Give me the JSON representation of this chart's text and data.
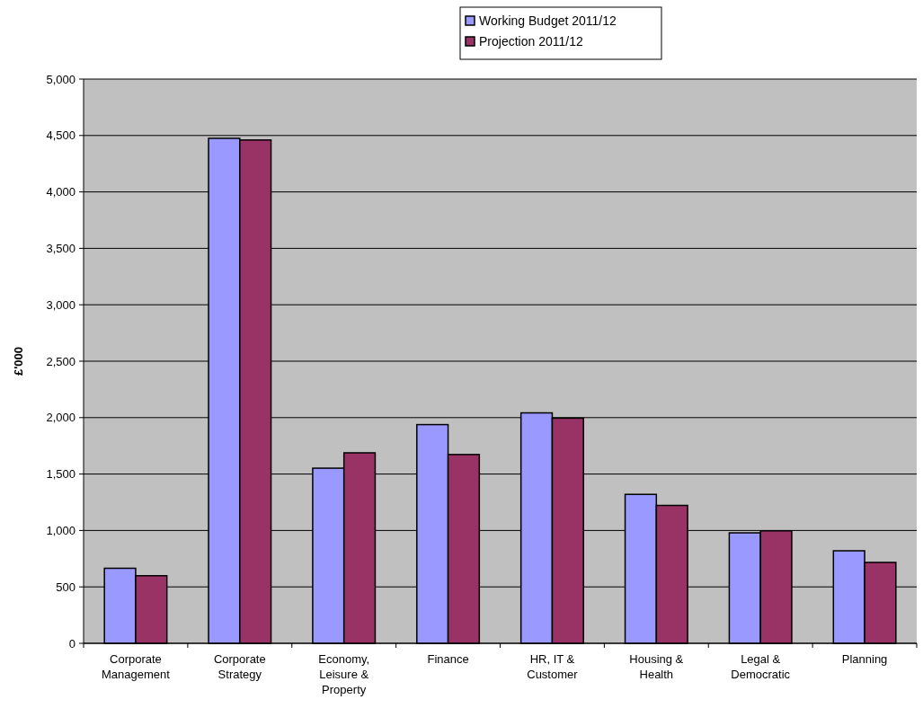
{
  "chart_data": {
    "type": "bar",
    "ylabel": "£'000",
    "categories": [
      "Corporate Management",
      "Corporate Strategy",
      "Economy, Leisure & Property",
      "Finance",
      "HR, IT & Customer",
      "Housing & Health",
      "Legal & Democratic",
      "Planning"
    ],
    "series": [
      {
        "name": "Working Budget 2011/12",
        "color": "#9999ff",
        "values": [
          665,
          4475,
          1552,
          1938,
          2042,
          1320,
          979,
          820
        ]
      },
      {
        "name": "Projection 2011/12",
        "color": "#993366",
        "values": [
          599,
          4460,
          1688,
          1673,
          1995,
          1222,
          997,
          717
        ]
      }
    ],
    "ylim": [
      0,
      5000
    ],
    "yticks": [
      {
        "value": 0,
        "label": "0"
      },
      {
        "value": 500,
        "label": "500"
      },
      {
        "value": 1000,
        "label": "1,000"
      },
      {
        "value": 1500,
        "label": "1,500"
      },
      {
        "value": 2000,
        "label": "2,000"
      },
      {
        "value": 2500,
        "label": "2,500"
      },
      {
        "value": 3000,
        "label": "3,000"
      },
      {
        "value": 3500,
        "label": "3,500"
      },
      {
        "value": 4000,
        "label": "4,000"
      },
      {
        "value": 4500,
        "label": "4,500"
      },
      {
        "value": 5000,
        "label": "5,000"
      }
    ],
    "grid": "y",
    "legend": "top"
  }
}
